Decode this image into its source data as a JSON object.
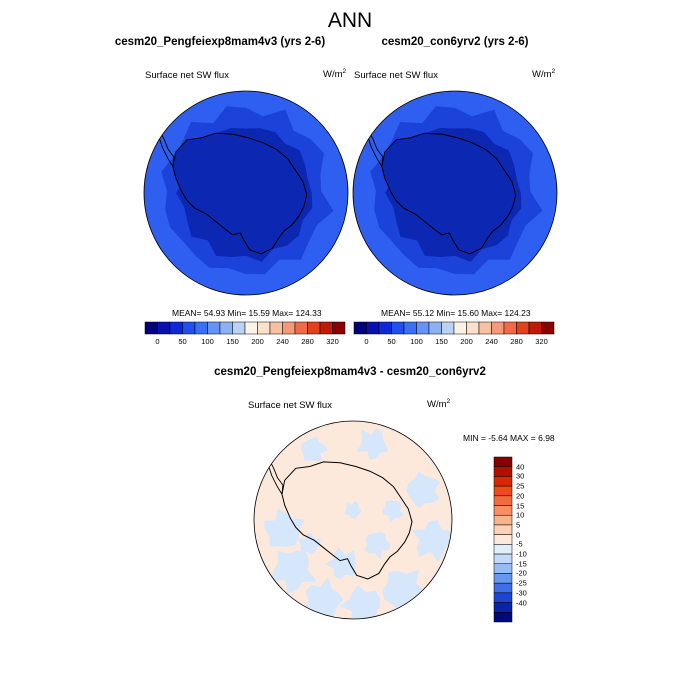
{
  "title": "ANN",
  "panels": [
    {
      "id": "left",
      "case": "cesm20_Pengfeiexp8mam4v3 (yrs 2-6)",
      "variable": "Surface net SW flux",
      "units": "W/m",
      "units_exp": "2",
      "stats": "MEAN=  54.93  Min=  15.59  Max= 124.33"
    },
    {
      "id": "right",
      "case": "cesm20_con6yrv2 (yrs 2-6)",
      "variable": "Surface net SW flux",
      "units": "W/m",
      "units_exp": "2",
      "stats": "MEAN=  55.12  Min=  15.60  Max= 124.23"
    }
  ],
  "top_colorbar": {
    "colors": [
      "#00007a",
      "#0a10b0",
      "#0c28d8",
      "#1f4fee",
      "#3b70f6",
      "#6493f5",
      "#8cb2f2",
      "#b8d3f4",
      "#fdf2e6",
      "#fde0cb",
      "#f9c1a4",
      "#f6997a",
      "#f06a47",
      "#e0411f",
      "#c01a05",
      "#8a0000"
    ],
    "labels": [
      "0",
      "50",
      "100",
      "150",
      "200",
      "240",
      "280",
      "320"
    ]
  },
  "diff": {
    "title": "cesm20_Pengfeiexp8mam4v3 - cesm20_con6yrv2",
    "variable": "Surface net SW flux",
    "units": "W/m",
    "units_exp": "2",
    "stats": "MIN =  -5.64 MAX =   6.98"
  },
  "diff_colorbar": {
    "colors": [
      "#8a0000",
      "#b01000",
      "#d62a05",
      "#ee4a1a",
      "#f26a40",
      "#f58f66",
      "#f8b28f",
      "#fbd2b6",
      "#fde9dc",
      "#e2eefb",
      "#c2d9f7",
      "#97bbf3",
      "#6a97ee",
      "#3f6fe6",
      "#1c45d6",
      "#0a22ac",
      "#000a78"
    ],
    "labels": [
      "40",
      "30",
      "25",
      "20",
      "15",
      "10",
      "5",
      "0",
      "-5",
      "-10",
      "-15",
      "-20",
      "-25",
      "-30",
      "-40"
    ]
  },
  "colors": {
    "map_outer": "#2f5ff0",
    "map_mid": "#1b43da",
    "map_inner": "#0c27b2",
    "diff_base": "#fde9dc",
    "diff_blue": "#d7e7fb"
  }
}
